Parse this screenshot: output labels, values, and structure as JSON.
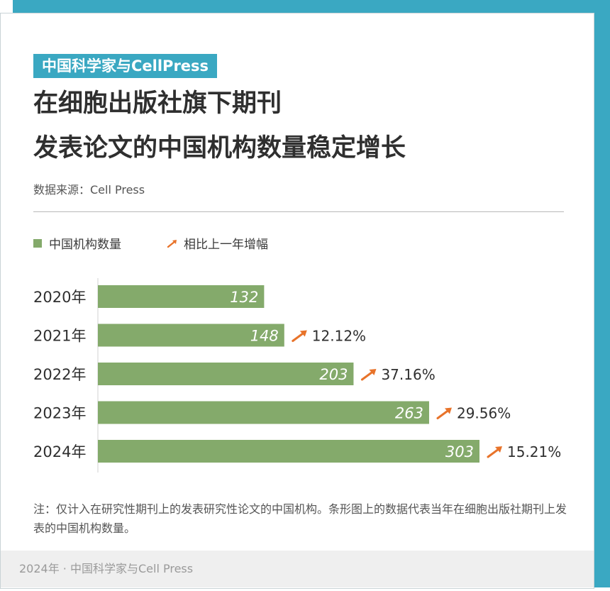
{
  "header": {
    "badge": "中国科学家与CellPress",
    "title_line1": "在细胞出版社旗下期刊",
    "title_line2": "发表论文的中国机构数量稳定增长",
    "source": "数据来源：Cell Press"
  },
  "legend": {
    "series_label": "中国机构数量",
    "growth_label": "相比上一年增幅"
  },
  "chart_data": {
    "type": "bar",
    "orientation": "horizontal",
    "categories": [
      "2020年",
      "2021年",
      "2022年",
      "2023年",
      "2024年"
    ],
    "series": [
      {
        "name": "中国机构数量",
        "values": [
          132,
          148,
          203,
          263,
          303
        ]
      }
    ],
    "growth": [
      "",
      "12.12%",
      "37.16%",
      "29.56%",
      "15.21%"
    ],
    "xlim": [
      0,
      303
    ],
    "bar_color": "#84aa6b",
    "arrow_color": "#e8732a"
  },
  "note": "注：仅计入在研究性期刊上的发表研究性论文的中国机构。条形图上的数据代表当年在细胞出版社期刊上发表的中国机构数量。",
  "footer": "2024年 · 中国科学家与Cell Press",
  "colors": {
    "frame": "#3aa8c2",
    "bar": "#84aa6b",
    "arrow": "#e8732a"
  }
}
